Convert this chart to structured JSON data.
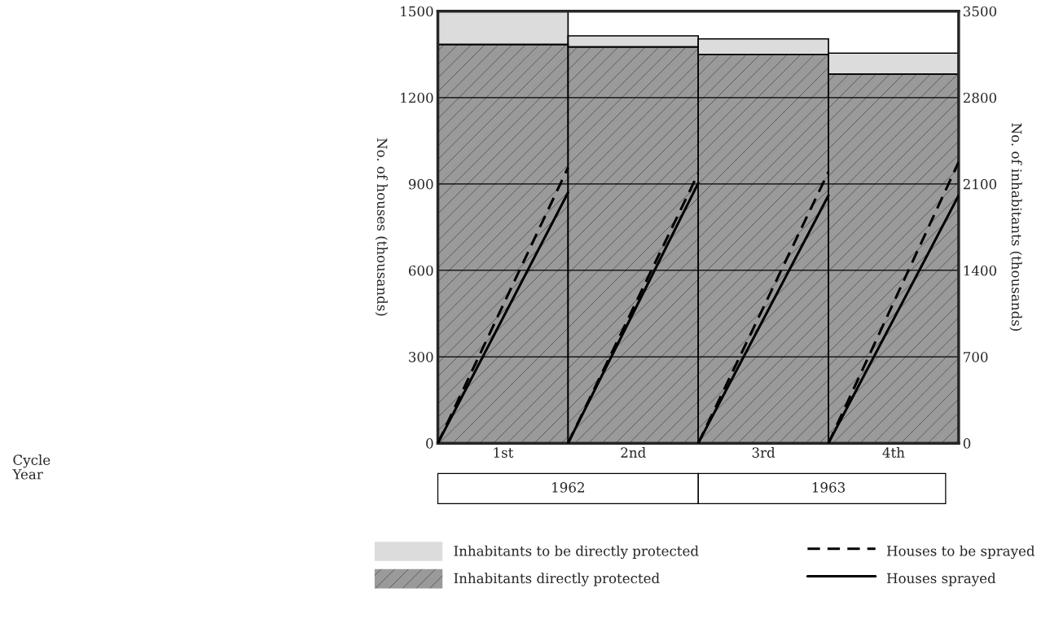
{
  "chart_data": {
    "type": "bar",
    "stacked": true,
    "xlim": [
      0,
      4
    ],
    "xticks": [
      {
        "value": 0.5,
        "label": "1st"
      },
      {
        "value": 1.5,
        "label": "2nd"
      },
      {
        "value": 2.5,
        "label": "3rd"
      },
      {
        "value": 3.5,
        "label": "4th"
      }
    ],
    "ylabel": "No. of houses (thousands)",
    "y2label": "No. of inhabitants (thousands)",
    "ylim": [
      0,
      1500
    ],
    "yticks": [
      0,
      300,
      600,
      900,
      1200,
      1500
    ],
    "y2lim": [
      0,
      3500
    ],
    "y2ticks": [
      0,
      700,
      1400,
      2100,
      2800,
      3500
    ],
    "grid": "y",
    "legend": "bottom",
    "series": [
      {
        "name": "Inhabitants directly protected",
        "axis": "y2",
        "color": "#9a9a9a",
        "x": [
          0.5,
          1.5,
          2.5,
          3.5
        ],
        "values": [
          3230,
          3210,
          3150,
          2990
        ]
      },
      {
        "name": "Inhabitants to be directly protected",
        "axis": "y2",
        "color": "#dcdcdc",
        "x": [
          0.5,
          1.5,
          2.5,
          3.5
        ],
        "values": [
          270,
          90,
          125,
          170
        ]
      },
      {
        "name": "Houses to be sprayed",
        "type": "line",
        "color": "#000000",
        "line_style": "dashed",
        "x": [
          0,
          1
        ],
        "values": [
          0,
          957
        ]
      },
      {
        "name": "Houses sprayed",
        "type": "line",
        "color": "#000000",
        "line_style": "solid",
        "x": [
          0,
          1
        ],
        "values": [
          0,
          870
        ]
      },
      {
        "type": "line",
        "color": "#000000",
        "line_style": "dashed",
        "x": [
          1,
          2
        ],
        "values": [
          0,
          937
        ]
      },
      {
        "type": "line",
        "color": "#000000",
        "line_style": "solid",
        "x": [
          1,
          2
        ],
        "values": [
          0,
          903
        ]
      },
      {
        "type": "line",
        "color": "#000000",
        "line_style": "dashed",
        "x": [
          2,
          3
        ],
        "values": [
          0,
          942
        ]
      },
      {
        "type": "line",
        "color": "#000000",
        "line_style": "solid",
        "x": [
          2,
          3
        ],
        "values": [
          0,
          860
        ]
      },
      {
        "type": "line",
        "color": "#000000",
        "line_style": "dashed",
        "x": [
          3,
          4
        ],
        "values": [
          0,
          976
        ]
      },
      {
        "type": "line",
        "color": "#000000",
        "line_style": "solid",
        "x": [
          3,
          4
        ],
        "values": [
          0,
          860
        ]
      }
    ],
    "annotations": [
      "Cycle",
      "Year",
      "1962",
      "1963"
    ]
  }
}
